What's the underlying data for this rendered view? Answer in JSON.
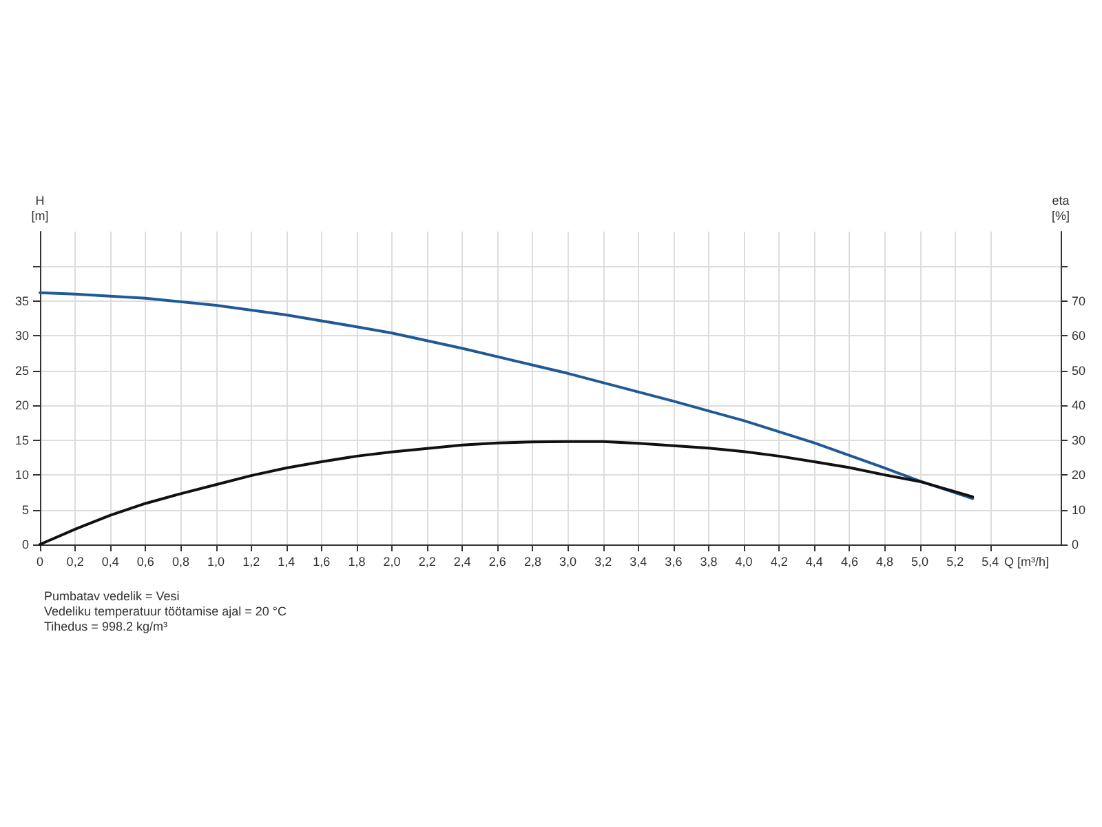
{
  "chart_data": {
    "type": "line",
    "xlabel": "Q [m³/h]",
    "ylabel": "H\n[m]",
    "y2label": "eta\n[%]",
    "annotations": [
      "Pumbatav vedelik = Vesi",
      "Vedeliku temperatuur töötamise ajal = 20 °C",
      "Tihedus = 998.2 kg/m³"
    ],
    "xlim": [
      0,
      5.8
    ],
    "xticks": [
      0,
      {
        "value": 0.2,
        "label": "0,2"
      },
      {
        "value": 0.4,
        "label": "0,4"
      },
      {
        "value": 0.6,
        "label": "0,6"
      },
      {
        "value": 0.8,
        "label": "0,8"
      },
      {
        "value": 1,
        "label": "1,0"
      },
      {
        "value": 1.2,
        "label": "1,2"
      },
      {
        "value": 1.4,
        "label": "1,4"
      },
      {
        "value": 1.6,
        "label": "1,6"
      },
      {
        "value": 1.8,
        "label": "1,8"
      },
      {
        "value": 2,
        "label": "2,0"
      },
      {
        "value": 2.2,
        "label": "2,2"
      },
      {
        "value": 2.4,
        "label": "2,4"
      },
      {
        "value": 2.6,
        "label": "2,6"
      },
      {
        "value": 2.8,
        "label": "2,8"
      },
      {
        "value": 3,
        "label": "3,0"
      },
      {
        "value": 3.2,
        "label": "3,2"
      },
      {
        "value": 3.4,
        "label": "3,4"
      },
      {
        "value": 3.6,
        "label": "3,6"
      },
      {
        "value": 3.8,
        "label": "3,8"
      },
      {
        "value": 4,
        "label": "4,0"
      },
      {
        "value": 4.2,
        "label": "4,2"
      },
      {
        "value": 4.4,
        "label": "4,4"
      },
      {
        "value": 4.6,
        "label": "4,6"
      },
      {
        "value": 4.8,
        "label": "4,8"
      },
      {
        "value": 5,
        "label": "5,0"
      },
      {
        "value": 5.2,
        "label": "5,2"
      },
      {
        "value": 5.4,
        "label": "5,4"
      }
    ],
    "ylim": [
      0,
      45
    ],
    "yticks": [
      0,
      5,
      10,
      15,
      20,
      25,
      30,
      35,
      {
        "value": 40,
        "label": null
      }
    ],
    "y2lim": [
      0,
      90
    ],
    "y2ticks": [
      0,
      10,
      20,
      30,
      40,
      50,
      60,
      70,
      {
        "value": 80,
        "label": null
      }
    ],
    "grid": true,
    "marker": "none",
    "line_style": "solid",
    "series": [
      {
        "color": "#1f5a96",
        "x": [
          0,
          0.2,
          0.6,
          1.0,
          1.4,
          1.8,
          2.0,
          2.4,
          2.8,
          3.0,
          3.6,
          4.0,
          4.4,
          4.8,
          5.0,
          5.3
        ],
        "values": [
          36.2,
          36,
          35.4,
          34.4,
          33,
          31.3,
          30.4,
          28.2,
          25.8,
          24.6,
          20.6,
          17.8,
          14.6,
          11,
          9.1,
          6.6
        ]
      },
      {
        "color": "#111111",
        "axis": "y2",
        "x": [
          0,
          0.2,
          0.4,
          0.6,
          0.8,
          1.0,
          1.2,
          1.4,
          1.6,
          1.8,
          2.0,
          2.2,
          2.4,
          2.6,
          2.8,
          3.0,
          3.2,
          3.4,
          3.8,
          4.0,
          4.2,
          4.4,
          4.6,
          4.8,
          5.0,
          5.3
        ],
        "values": [
          0,
          4.4,
          8.4,
          11.8,
          14.6,
          17.2,
          19.8,
          22,
          23.8,
          25.4,
          26.6,
          27.6,
          28.6,
          29.2,
          29.5,
          29.6,
          29.6,
          29.1,
          27.7,
          26.7,
          25.4,
          23.8,
          22.1,
          20,
          18.1,
          13.7
        ]
      }
    ]
  }
}
